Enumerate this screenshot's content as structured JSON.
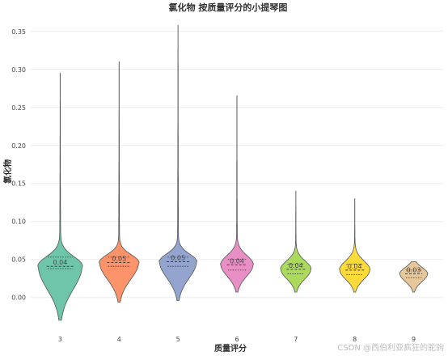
{
  "chart_data": {
    "type": "violin",
    "title": "氯化物 按质量评分的小提琴图",
    "xlabel": "质量评分",
    "ylabel": "氯化物",
    "ylim": [
      -0.045,
      0.37
    ],
    "yticks": [
      0.0,
      0.05,
      0.1,
      0.15,
      0.2,
      0.25,
      0.3,
      0.35
    ],
    "ytick_labels": [
      "0.00",
      "0.05",
      "0.10",
      "0.15",
      "0.20",
      "0.25",
      "0.30",
      "0.35"
    ],
    "grid": true,
    "categories": [
      "3",
      "4",
      "5",
      "6",
      "7",
      "8",
      "9"
    ],
    "series": [
      {
        "category": "3",
        "min": -0.03,
        "max": 0.295,
        "q1": 0.038,
        "median": 0.041,
        "q3": 0.053,
        "median_label": "0.04",
        "color": "#66c2a5"
      },
      {
        "category": "4",
        "min": -0.006,
        "max": 0.31,
        "q1": 0.041,
        "median": 0.046,
        "q3": 0.053,
        "median_label": "0.05",
        "color": "#fc8d62"
      },
      {
        "category": "5",
        "min": -0.004,
        "max": 0.358,
        "q1": 0.041,
        "median": 0.047,
        "q3": 0.053,
        "median_label": "0.05",
        "color": "#8da0cb"
      },
      {
        "category": "6",
        "min": 0.007,
        "max": 0.265,
        "q1": 0.036,
        "median": 0.043,
        "q3": 0.05,
        "median_label": "0.04",
        "color": "#e78ac3"
      },
      {
        "category": "7",
        "min": 0.007,
        "max": 0.14,
        "q1": 0.031,
        "median": 0.037,
        "q3": 0.044,
        "median_label": "0.04",
        "color": "#a6d854"
      },
      {
        "category": "8",
        "min": 0.007,
        "max": 0.13,
        "q1": 0.03,
        "median": 0.036,
        "q3": 0.044,
        "median_label": "0.04",
        "color": "#ffd92f"
      },
      {
        "category": "9",
        "min": 0.007,
        "max": 0.047,
        "q1": 0.026,
        "median": 0.031,
        "q3": 0.036,
        "median_label": "0.03",
        "color": "#e5c494"
      }
    ]
  },
  "watermark": "CSDN @西伯利亚疯狂的驼驹"
}
